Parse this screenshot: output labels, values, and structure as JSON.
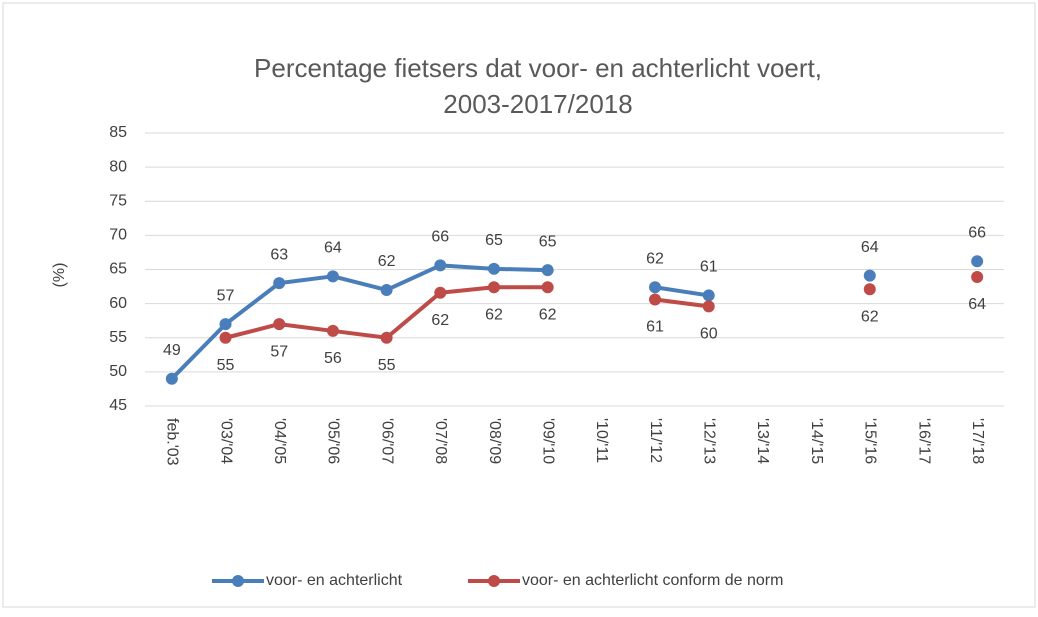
{
  "chart_data": {
    "type": "line",
    "title": [
      "Percentage fietsers dat voor- en achterlicht voert,",
      "2003-2017/2018"
    ],
    "y_label": "(%)",
    "categories": [
      "feb.'03",
      "'03/'04",
      "'04/'05",
      "'05/'06",
      "'06/'07",
      "'07/'08",
      "'08/'09",
      "'09/'10",
      "'10/'11",
      "'11/'12",
      "'12/'13",
      "'13/'14",
      "'14/'15",
      "'15/'16",
      "'16/'17",
      "'17/'18"
    ],
    "series": [
      {
        "name": "voor- en achterlicht",
        "color": "#4a7ebb",
        "values": [
          49,
          57,
          63,
          64,
          62,
          65.6,
          65.1,
          64.9,
          null,
          62.4,
          61.2,
          null,
          null,
          64.1,
          null,
          66.2
        ],
        "value_labels": [
          "49",
          "57",
          "63",
          "64",
          "62",
          "66",
          "65",
          "65",
          null,
          "62",
          "61",
          null,
          null,
          "64",
          null,
          "66"
        ]
      },
      {
        "name": "voor- en achterlicht conform de norm",
        "color": "#be4b48",
        "values": [
          null,
          55,
          57,
          56,
          55,
          61.6,
          62.4,
          62.4,
          null,
          60.6,
          59.6,
          null,
          null,
          62.1,
          null,
          63.9
        ],
        "value_labels": [
          null,
          "55",
          "57",
          "56",
          "55",
          "62",
          "62",
          "62",
          null,
          "61",
          "60",
          null,
          null,
          "62",
          null,
          "64"
        ]
      }
    ],
    "ylim": [
      45,
      85
    ],
    "yticks": [
      45,
      50,
      55,
      60,
      65,
      70,
      75,
      80,
      85
    ],
    "grid": true,
    "legend": "bottom"
  }
}
